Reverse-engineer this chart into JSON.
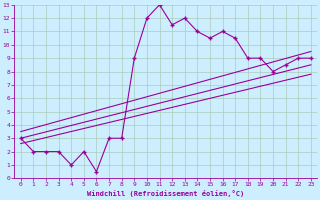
{
  "xlabel": "Windchill (Refroidissement éolien,°C)",
  "bg_color": "#cceeff",
  "grid_color": "#aaccbb",
  "line_color": "#990099",
  "xlim": [
    -0.5,
    23.5
  ],
  "ylim": [
    0,
    13
  ],
  "xticks": [
    0,
    1,
    2,
    3,
    4,
    5,
    6,
    7,
    8,
    9,
    10,
    11,
    12,
    13,
    14,
    15,
    16,
    17,
    18,
    19,
    20,
    21,
    22,
    23
  ],
  "yticks": [
    0,
    1,
    2,
    3,
    4,
    5,
    6,
    7,
    8,
    9,
    10,
    11,
    12,
    13
  ],
  "main_x": [
    0,
    1,
    2,
    3,
    4,
    5,
    6,
    7,
    8,
    9,
    10,
    11,
    12,
    13,
    14,
    15,
    16,
    17,
    18,
    19,
    20,
    21,
    22,
    23
  ],
  "main_y": [
    3,
    2,
    2,
    2,
    1,
    2,
    0.5,
    3,
    3,
    9,
    12,
    13,
    11.5,
    12,
    11,
    10.5,
    11,
    10.5,
    9,
    9,
    8,
    8.5,
    9,
    9
  ],
  "line2_x": [
    0,
    23
  ],
  "line2_y": [
    3.5,
    9.5
  ],
  "line3_x": [
    0,
    23
  ],
  "line3_y": [
    3.0,
    8.5
  ],
  "line4_x": [
    0,
    23
  ],
  "line4_y": [
    2.6,
    7.8
  ]
}
